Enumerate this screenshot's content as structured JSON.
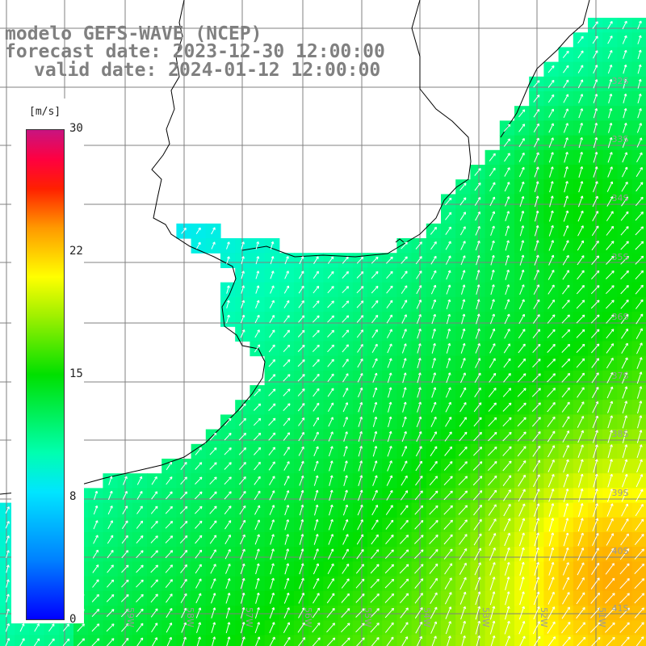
{
  "title": {
    "line1": "modelo GEFS-WAVE (NCEP)",
    "line2": "forecast date: 2023-12-30 12:00:00",
    "line3": "valid date: 2024-01-12 12:00:00"
  },
  "colorbar": {
    "unit": "[m/s]",
    "ticks": [
      "30",
      "22",
      "15",
      "8",
      "0"
    ],
    "tick_values": [
      30,
      22,
      15,
      8,
      0
    ],
    "colors": [
      "#0000ff",
      "#0080ff",
      "#00e5ff",
      "#00e000",
      "#ffff00",
      "#ff9900",
      "#ff2000",
      "#c81480"
    ]
  },
  "map": {
    "land_color": "#ffffff",
    "coast_color": "#000000",
    "grid_color": "#808080",
    "lat_labels": [
      "32S",
      "33S",
      "34S",
      "35S",
      "36S",
      "37S",
      "38S",
      "39S",
      "40S",
      "41S"
    ],
    "lon_labels": [
      "59W",
      "58W",
      "57W",
      "56W",
      "55W",
      "54W",
      "53W",
      "52W",
      "51W"
    ]
  }
}
